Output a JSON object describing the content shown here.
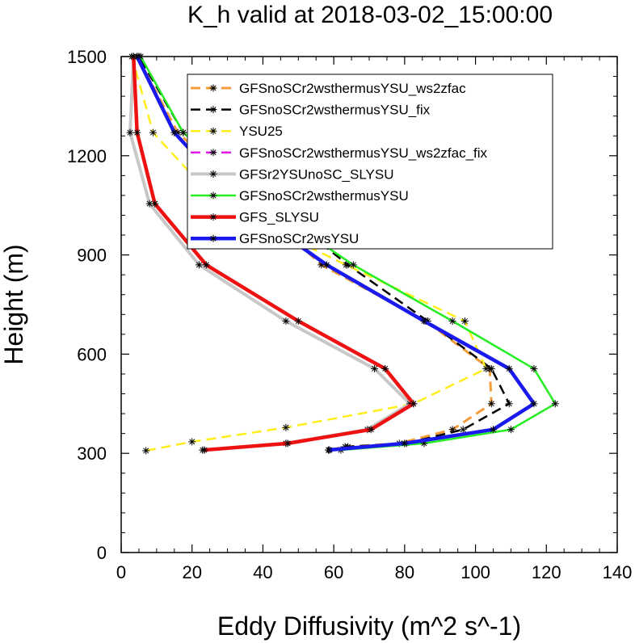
{
  "chart_data": {
    "type": "line",
    "title": "K_h valid at 2018-03-02_15:00:00",
    "xlabel": "Eddy Diffusivity (m^2 s^-1)",
    "ylabel": "Height (m)",
    "xlim": [
      0,
      140
    ],
    "ylim": [
      0,
      1500
    ],
    "xticks": [
      "0",
      "20",
      "40",
      "60",
      "80",
      "100",
      "120",
      "140"
    ],
    "yticks": [
      "0",
      "300",
      "600",
      "900",
      "1200",
      "1500"
    ],
    "legend_position": "upper-center",
    "series": [
      {
        "name": "GFSnoSCr2wsthermusYSU_ws2zfac",
        "color": "#f39c3a",
        "dash": "dashed",
        "width": 3,
        "x": [
          58.8,
          63.2,
          78.5,
          93.5,
          104.5,
          104.0,
          86.0,
          56.5,
          16.0,
          4.5
        ],
        "y": [
          310,
          320,
          330,
          372,
          450,
          556,
          700,
          870,
          1270,
          1500
        ]
      },
      {
        "name": "GFSnoSCr2wsthermusYSU_fix",
        "color": "#000000",
        "dash": "dashed",
        "width": 2.5,
        "x": [
          58.8,
          64.0,
          80.5,
          96.5,
          109.5,
          104.5,
          86.5,
          64.0,
          17.5,
          5.0
        ],
        "y": [
          310,
          320,
          330,
          372,
          450,
          556,
          700,
          870,
          1270,
          1500
        ]
      },
      {
        "name": "YSU25",
        "color": "#ffee1a",
        "dash": "dashed",
        "width": 2.5,
        "x": [
          7.0,
          20.0,
          46.5,
          82.5,
          103.0,
          97.0,
          63.5,
          27.5,
          9.0,
          3.0
        ],
        "y": [
          308,
          335,
          378,
          450,
          556,
          700,
          870,
          1055,
          1270,
          1500
        ]
      },
      {
        "name": "GFSnoSCr2wsthermusYSU_ws2zfac_fix",
        "color": "#e21aea",
        "dash": "dashed",
        "width": 2.5,
        "x": [],
        "y": []
      },
      {
        "name": "GFSr2YSUnoSC_SLYSU",
        "color": "#c8c8c8",
        "dash": "solid",
        "width": 4,
        "x": [
          23.0,
          46.5,
          69.5,
          81.5,
          71.5,
          46.5,
          22.0,
          8.0,
          2.5,
          3.5
        ],
        "y": [
          310,
          330,
          372,
          450,
          556,
          700,
          870,
          1055,
          1270,
          1500
        ]
      },
      {
        "name": "GFSnoSCr2wsthermusYSU",
        "color": "#22ee22",
        "dash": "solid",
        "width": 2.5,
        "x": [
          62.0,
          85.5,
          110.0,
          122.5,
          116.5,
          93.5,
          65.5,
          40.0,
          17.5,
          5.5
        ],
        "y": [
          310,
          330,
          372,
          450,
          556,
          700,
          870,
          1055,
          1270,
          1500
        ]
      },
      {
        "name": "GFS_SLYSU",
        "color": "#ee1111",
        "dash": "solid",
        "width": 4.5,
        "x": [
          23.5,
          47.0,
          70.5,
          82.5,
          74.5,
          50.0,
          24.0,
          9.5,
          4.5,
          3.5
        ],
        "y": [
          310,
          330,
          372,
          450,
          556,
          700,
          870,
          1055,
          1270,
          1500
        ]
      },
      {
        "name": "GFSnoSCr2wsYSU",
        "color": "#1a1aee",
        "dash": "solid",
        "width": 4.5,
        "x": [
          58.5,
          80.0,
          105.0,
          116.5,
          109.5,
          85.5,
          58.0,
          33.5,
          15.0,
          4.5
        ],
        "y": [
          310,
          330,
          372,
          450,
          556,
          700,
          870,
          1055,
          1270,
          1500
        ]
      }
    ]
  }
}
